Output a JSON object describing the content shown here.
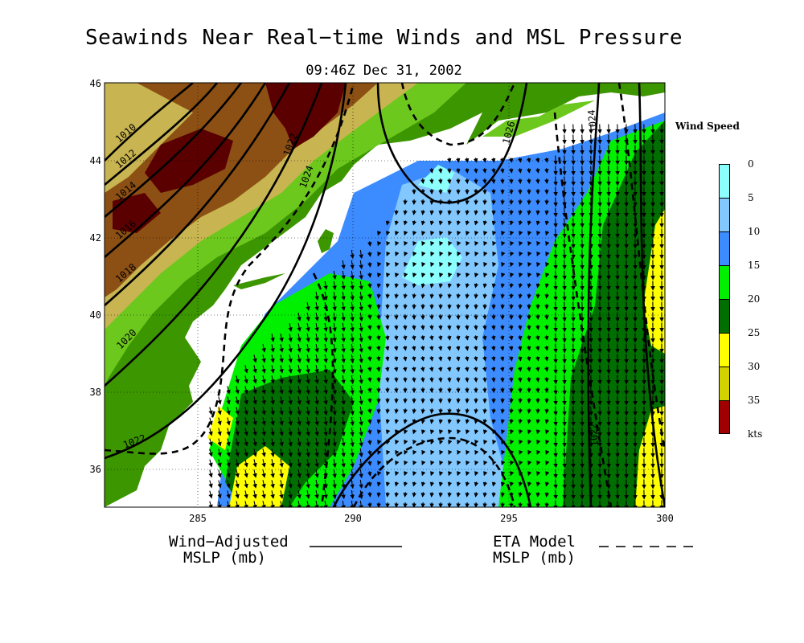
{
  "title": "Seawinds Near Real−time Winds and MSL Pressure",
  "subtitle": "09:46Z Dec 31, 2002",
  "axes": {
    "y_ticks": [
      "46",
      "44",
      "42",
      "40",
      "38",
      "36"
    ],
    "x_ticks": [
      "285",
      "290",
      "295",
      "300"
    ]
  },
  "colorbar": {
    "title": "Wind Speed",
    "labels": [
      "0",
      "5",
      "10",
      "15",
      "20",
      "25",
      "30",
      "35",
      "kts"
    ],
    "colors": [
      "#8cffff",
      "#82c8ff",
      "#3c8cff",
      "#00f000",
      "#006e00",
      "#ffff00",
      "#d2d200",
      "#a00000"
    ]
  },
  "contour_labels": [
    "1010",
    "1012",
    "1014",
    "1016",
    "1018",
    "1020",
    "1022",
    "1024",
    "1026",
    "1022",
    "1024",
    "1022"
  ],
  "legend": {
    "solid_label_line1": "Wind−Adjusted",
    "solid_label_line2": "MSLP (mb)",
    "dashed_label_line1": "ETA Model",
    "dashed_label_line2": "MSLP (mb)"
  },
  "terrain_colors": {
    "low": "#3c9600",
    "mid": "#6dc81e",
    "tan": "#c8b450",
    "brown": "#8c5014",
    "dark": "#5a0000"
  }
}
